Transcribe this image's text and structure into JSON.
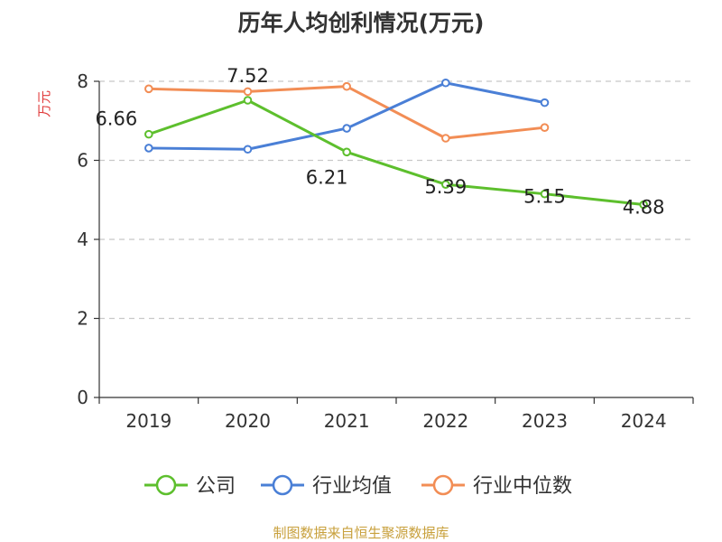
{
  "chart_data": {
    "type": "line",
    "title": "历年人均创利情况(万元)",
    "ylabel": "万元",
    "xlabel": "",
    "categories": [
      "2019",
      "2020",
      "2021",
      "2022",
      "2023",
      "2024"
    ],
    "ylim": [
      0,
      8
    ],
    "yticks": [
      "0",
      "2",
      "4",
      "6",
      "8"
    ],
    "grid": true,
    "legend_position": "bottom",
    "series": [
      {
        "name": "公司",
        "color": "#5dbf2d",
        "values": [
          6.66,
          7.52,
          6.21,
          5.39,
          5.15,
          4.88
        ],
        "labels": [
          "6.66",
          "7.52",
          "6.21",
          "5.39",
          "5.15",
          "4.88"
        ]
      },
      {
        "name": "行业均值",
        "color": "#4a7fd6",
        "values": [
          6.31,
          6.28,
          6.81,
          7.96,
          7.46,
          null
        ],
        "labels": []
      },
      {
        "name": "行业中位数",
        "color": "#f28d55",
        "values": [
          7.81,
          7.74,
          7.87,
          6.56,
          6.83,
          null
        ],
        "labels": []
      }
    ]
  },
  "footer": {
    "source": "制图数据来自恒生聚源数据库"
  }
}
